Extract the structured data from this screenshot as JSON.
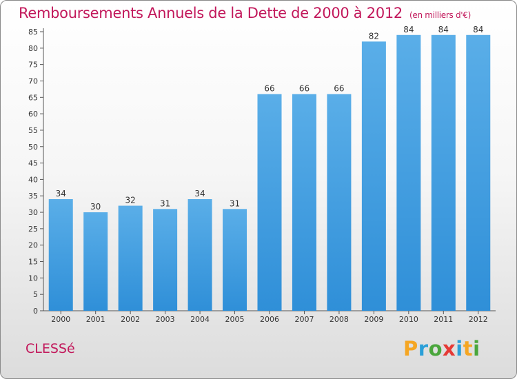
{
  "title": "Remboursements Annuels de la Dette de 2000 à 2012",
  "title_unit": "(en milliers d'€)",
  "town": "CLESSé",
  "logo": {
    "letters": [
      "P",
      "r",
      "o",
      "x",
      "i",
      "t",
      "i"
    ],
    "colors": [
      "#f5a623",
      "#2a9fd8",
      "#4aa63c",
      "#e53935",
      "#2a9fd8",
      "#f5a623",
      "#4aa63c"
    ]
  },
  "colors": {
    "bar": "#2f8fd8",
    "bar_light": "#5aaee8",
    "accent": "#c2185b"
  },
  "chart_data": {
    "type": "bar",
    "title": "Remboursements Annuels de la Dette de 2000 à 2012",
    "categories": [
      "2000",
      "2001",
      "2002",
      "2003",
      "2004",
      "2005",
      "2006",
      "2007",
      "2008",
      "2009",
      "2010",
      "2011",
      "2012"
    ],
    "values": [
      34,
      30,
      32,
      31,
      34,
      31,
      66,
      66,
      66,
      82,
      84,
      84,
      84
    ],
    "xlabel": "",
    "ylabel": "",
    "ylim": [
      0,
      85
    ],
    "yticks": [
      0,
      5,
      10,
      15,
      20,
      25,
      30,
      35,
      40,
      45,
      50,
      55,
      60,
      65,
      70,
      75,
      80,
      85
    ],
    "grid": false,
    "legend": "none"
  }
}
